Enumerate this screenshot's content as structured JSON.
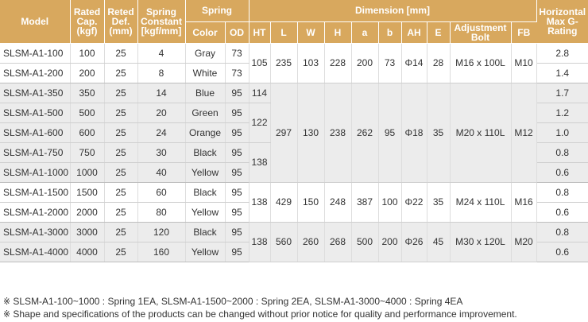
{
  "headers": {
    "model": "Model",
    "rated_cap": "Rated Cap. (kgf)",
    "rated_def": "Reted Def. (mm)",
    "spring_constant": "Spring Constant [kgf/mm]",
    "spring": "Spring",
    "color": "Color",
    "od": "OD",
    "ht": "HT",
    "dimension": "Dimension [mm]",
    "L": "L",
    "W": "W",
    "H": "H",
    "a": "a",
    "b": "b",
    "AH": "AH",
    "E": "E",
    "bolt": "Adjustment Bolt",
    "fb": "FB",
    "rating": "Horizontal Max G-Rating"
  },
  "rows": [
    {
      "model": "SLSM-A1-100",
      "cap": "100",
      "def": "25",
      "k": "4",
      "color": "Gray",
      "od": "73",
      "rating": "2.8"
    },
    {
      "model": "SLSM-A1-200",
      "cap": "200",
      "def": "25",
      "k": "8",
      "color": "White",
      "od": "73",
      "rating": "1.4"
    },
    {
      "model": "SLSM-A1-350",
      "cap": "350",
      "def": "25",
      "k": "14",
      "color": "Blue",
      "od": "95",
      "rating": "1.7"
    },
    {
      "model": "SLSM-A1-500",
      "cap": "500",
      "def": "25",
      "k": "20",
      "color": "Green",
      "od": "95",
      "rating": "1.2"
    },
    {
      "model": "SLSM-A1-600",
      "cap": "600",
      "def": "25",
      "k": "24",
      "color": "Orange",
      "od": "95",
      "rating": "1.0"
    },
    {
      "model": "SLSM-A1-750",
      "cap": "750",
      "def": "25",
      "k": "30",
      "color": "Black",
      "od": "95",
      "rating": "0.8"
    },
    {
      "model": "SLSM-A1-1000",
      "cap": "1000",
      "def": "25",
      "k": "40",
      "color": "Yellow",
      "od": "95",
      "rating": "0.6"
    },
    {
      "model": "SLSM-A1-1500",
      "cap": "1500",
      "def": "25",
      "k": "60",
      "color": "Black",
      "od": "95",
      "rating": "0.8"
    },
    {
      "model": "SLSM-A1-2000",
      "cap": "2000",
      "def": "25",
      "k": "80",
      "color": "Yellow",
      "od": "95",
      "rating": "0.6"
    },
    {
      "model": "SLSM-A1-3000",
      "cap": "3000",
      "def": "25",
      "k": "120",
      "color": "Black",
      "od": "95",
      "rating": "0.8"
    },
    {
      "model": "SLSM-A1-4000",
      "cap": "4000",
      "def": "25",
      "k": "160",
      "color": "Yellow",
      "od": "95",
      "rating": "0.6"
    }
  ],
  "ht": {
    "g1": "105",
    "r350": "114",
    "r500_600": "122",
    "r750_1000": "138",
    "g3": "138",
    "g4": "138"
  },
  "groups": [
    {
      "L": "235",
      "W": "103",
      "H": "228",
      "a": "200",
      "b": "73",
      "AH": "Φ14",
      "E": "28",
      "bolt": "M16 x 100L",
      "fb": "M10"
    },
    {
      "L": "297",
      "W": "130",
      "H": "238",
      "a": "262",
      "b": "95",
      "AH": "Φ18",
      "E": "35",
      "bolt": "M20 x 110L",
      "fb": "M12"
    },
    {
      "L": "429",
      "W": "150",
      "H": "248",
      "a": "387",
      "b": "100",
      "AH": "Φ22",
      "E": "35",
      "bolt": "M24 x 110L",
      "fb": "M16"
    },
    {
      "L": "560",
      "W": "260",
      "H": "268",
      "a": "500",
      "b": "200",
      "AH": "Φ26",
      "E": "45",
      "bolt": "M30 x 120L",
      "fb": "M20"
    }
  ],
  "notes": [
    "※ SLSM-A1-100~1000 : Spring 1EA, SLSM-A1-1500~2000 : Spring 2EA, SLSM-A1-3000~4000 : Spring 4EA",
    "※ Shape and specifications of the products can be changed without prior notice for quality and performance improvement."
  ]
}
